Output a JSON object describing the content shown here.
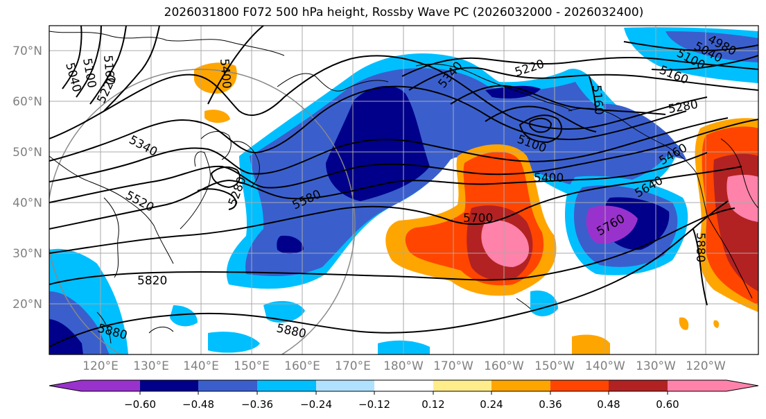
{
  "title": "2026031800 F072 500 hPa height, Rossby Wave PC (2026032000 - 2026032400)",
  "map": {
    "lat_ticks": [
      "70°N",
      "60°N",
      "50°N",
      "40°N",
      "30°N",
      "20°N"
    ],
    "lon_ticks": [
      "120°E",
      "130°E",
      "140°E",
      "150°E",
      "160°E",
      "170°E",
      "180°W",
      "170°W",
      "160°W",
      "150°W",
      "140°W",
      "130°W",
      "120°W"
    ],
    "contour_labels": [
      "5040",
      "5100",
      "5160",
      "5220",
      "5400",
      "5340",
      "5280",
      "5520",
      "5580",
      "5820",
      "5880",
      "5340",
      "5220",
      "5160",
      "5100",
      "5040",
      "4980",
      "5160",
      "5280",
      "5100",
      "5400",
      "5460",
      "5640",
      "5700",
      "5760",
      "5880",
      "5880"
    ]
  },
  "colorbar": {
    "tick_labels": [
      "−0.60",
      "−0.48",
      "−0.36",
      "−0.24",
      "−0.12",
      "0.12",
      "0.24",
      "0.36",
      "0.48",
      "0.60"
    ],
    "colors": [
      "#9932cc",
      "#00008b",
      "#3a5fcd",
      "#00bfff",
      "#b0e2ff",
      "#ffffff",
      "#ffec8b",
      "#ffa500",
      "#ff4500",
      "#b22222",
      "#ff82ab"
    ]
  },
  "colors": {
    "frame": "#000000",
    "grid": "#aaaaaa",
    "tick_text": "#808080"
  }
}
